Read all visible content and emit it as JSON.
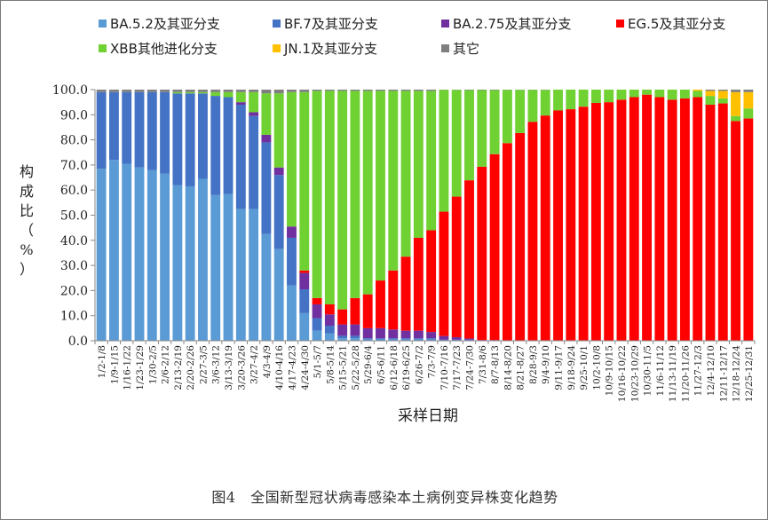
{
  "caption": "图4　全国新型冠状病毒感染本土病例变异株变化趋势",
  "chart_data": {
    "type": "bar",
    "stacked": true,
    "title": "",
    "xlabel": "采样日期",
    "ylabel": "构成比（%）",
    "ylim": [
      0,
      100
    ],
    "yticks": [
      "0.0",
      "10.0",
      "20.0",
      "30.0",
      "40.0",
      "50.0",
      "60.0",
      "70.0",
      "80.0",
      "90.0",
      "100.0"
    ],
    "legend_position": "top",
    "categories": [
      "1/2-1/8",
      "1/9-1/15",
      "1/16-1/22",
      "1/23-1/29",
      "1/30-2/5",
      "2/6-2/12",
      "2/13-2/19",
      "2/20-2/26",
      "2/27-3/5",
      "3/6-3/12",
      "3/13-3/19",
      "3/20-3/26",
      "3/27-4/2",
      "4/3-4/9",
      "4/10-4/16",
      "4/17-4/23",
      "4/24-4/30",
      "5/1-5/7",
      "5/8-5/14",
      "5/15-5/21",
      "5/22-5/28",
      "5/29-6/4",
      "6/5-6/11",
      "6/12-6/18",
      "6/19-6/25",
      "6/26-7/2",
      "7/3-7/9",
      "7/10-7/16",
      "7/17-7/23",
      "7/24-7/30",
      "7/31-8/6",
      "8/7-8/13",
      "8/14-8/20",
      "8/21-8/27",
      "8/28-9/3",
      "9/4-9/10",
      "9/11-9/17",
      "9/18-9/24",
      "9/25-10/1",
      "10/2-10/8",
      "10/9-10/15",
      "10/16-10/22",
      "10/23-10/29",
      "10/30-11/5",
      "11/6-11/12",
      "11/13-11/19",
      "11/20-11/26",
      "11/27-12/3",
      "12/4-12/10",
      "12/11-12/17",
      "12/18-12/24",
      "12/25-12/31"
    ],
    "series": [
      {
        "name": "BA.5.2及其亚分支",
        "color": "#5b9bd5",
        "values": [
          68.5,
          72,
          70.5,
          69,
          68,
          66.5,
          62,
          61.5,
          64.5,
          58,
          58.5,
          52.5,
          52.5,
          42.5,
          36.5,
          22,
          11,
          4,
          3,
          1,
          1,
          0.5,
          0.5,
          0.5,
          0.5,
          0.5,
          0.5,
          0.2,
          0.2,
          0.2,
          0,
          0,
          0,
          0,
          0,
          0,
          0,
          0,
          0,
          0,
          0,
          0,
          0,
          0,
          0,
          0,
          0,
          0,
          0,
          0,
          0,
          0
        ]
      },
      {
        "name": "BF.7及其亚分支",
        "color": "#4472c4",
        "values": [
          30.5,
          27,
          28.5,
          30,
          31,
          32.5,
          36.5,
          37,
          34,
          39.5,
          38.5,
          41.5,
          37,
          36.5,
          29.5,
          19,
          9.5,
          5,
          3,
          1,
          1,
          0.5,
          0.5,
          0.5,
          0.5,
          0.5,
          0.5,
          0.2,
          0.2,
          0.2,
          0,
          0,
          0,
          0,
          0,
          0,
          0,
          0,
          0,
          0,
          0,
          0,
          0,
          0,
          0,
          0,
          0,
          0,
          0,
          0,
          0,
          0
        ]
      },
      {
        "name": "BA.2.75及其亚分支",
        "color": "#7030a0",
        "values": [
          0,
          0,
          0,
          0,
          0,
          0,
          0,
          0,
          0,
          0,
          0,
          1,
          1.5,
          3,
          3,
          4.5,
          6.5,
          5.5,
          4.5,
          4.5,
          4.5,
          4,
          4,
          3.5,
          3,
          3,
          2.5,
          1.5,
          1,
          0.5,
          0.3,
          0.3,
          0.2,
          0.2,
          0.2,
          0.2,
          0.2,
          0.2,
          0.2,
          0.2,
          0,
          0,
          0,
          0,
          0,
          0,
          0,
          0,
          0,
          0,
          0,
          0
        ]
      },
      {
        "name": "EG.5及其亚分支",
        "color": "#ff0000",
        "values": [
          0,
          0,
          0,
          0,
          0,
          0,
          0,
          0,
          0,
          0,
          0,
          0,
          0,
          0,
          0,
          0,
          1,
          2.5,
          4,
          6,
          10.5,
          13.5,
          19,
          23.5,
          29.5,
          37,
          40.5,
          49.5,
          56,
          63,
          69,
          74,
          78.5,
          82.5,
          87,
          89.5,
          91.5,
          92,
          93,
          94.5,
          95,
          96,
          97,
          98,
          97,
          96,
          96.5,
          97,
          94,
          94.5,
          87.5,
          88.5
        ]
      },
      {
        "name": "XBB其他进化分支",
        "color": "#70d132",
        "values": [
          0,
          0,
          0,
          0,
          0,
          0,
          0.5,
          0.5,
          0.5,
          1.5,
          2,
          4,
          8,
          16.5,
          29.5,
          53.5,
          71,
          82.5,
          85,
          87,
          82.5,
          81,
          75.5,
          71.5,
          66,
          58.5,
          55.5,
          48.5,
          42.5,
          35.9,
          30.5,
          25.5,
          21.2,
          17.2,
          12.7,
          10.2,
          8.3,
          7.8,
          6.8,
          5.3,
          5,
          4,
          3,
          2,
          3,
          4,
          3.5,
          2.5,
          3.5,
          2,
          2,
          4
        ]
      },
      {
        "name": "JN.1及其亚分支",
        "color": "#ffc000",
        "values": [
          0,
          0,
          0,
          0,
          0,
          0,
          0,
          0,
          0,
          0,
          0,
          0,
          0,
          0,
          0,
          0,
          0,
          0,
          0,
          0,
          0,
          0,
          0,
          0,
          0,
          0,
          0,
          0,
          0,
          0,
          0,
          0,
          0,
          0,
          0,
          0,
          0,
          0,
          0,
          0,
          0,
          0,
          0,
          0,
          0,
          0,
          0,
          0.5,
          2,
          3,
          9.5,
          6.5
        ]
      },
      {
        "name": "其它",
        "color": "#7f7f7f",
        "values": [
          1,
          1,
          1,
          1,
          1,
          1,
          1,
          1,
          1,
          1,
          1,
          1,
          1,
          1.5,
          1.5,
          1,
          1,
          0.5,
          0.5,
          0.5,
          0.5,
          0.5,
          0.5,
          0.5,
          0.5,
          0.5,
          0.5,
          0.1,
          0.1,
          0.2,
          0.2,
          0.2,
          0.1,
          0.1,
          0.1,
          0.1,
          0,
          0,
          0,
          0,
          0,
          0,
          0,
          0,
          0,
          0,
          0,
          0,
          0.5,
          0.5,
          1,
          1
        ]
      }
    ]
  }
}
